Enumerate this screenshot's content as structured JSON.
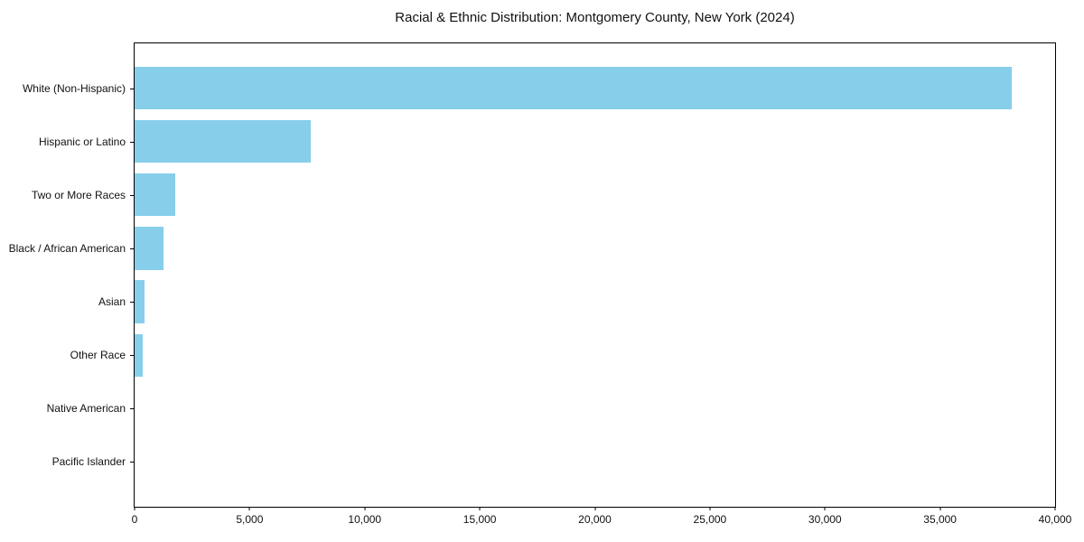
{
  "colors": {
    "bar": "#87CEEB",
    "axis": "#000000",
    "text": "#111111",
    "background": "#FFFFFF"
  },
  "chart_data": {
    "type": "bar",
    "orientation": "horizontal",
    "title": "Racial & Ethnic Distribution: Montgomery County, New York (2024)",
    "xlabel": "",
    "ylabel": "",
    "categories": [
      "White (Non-Hispanic)",
      "Hispanic or Latino",
      "Two or More Races",
      "Black / African American",
      "Asian",
      "Other Race",
      "Native American",
      "Pacific Islander"
    ],
    "values": [
      38100,
      7650,
      1750,
      1250,
      450,
      350,
      0,
      0
    ],
    "xlim": [
      0,
      40000
    ],
    "xticks": [
      0,
      5000,
      10000,
      15000,
      20000,
      25000,
      30000,
      35000,
      40000
    ],
    "xtick_labels": [
      "0",
      "5,000",
      "10,000",
      "15,000",
      "20,000",
      "25,000",
      "30,000",
      "35,000",
      "40,000"
    ],
    "grid": false,
    "legend": null,
    "bar_color": "#87CEEB",
    "frame": "full-box"
  }
}
